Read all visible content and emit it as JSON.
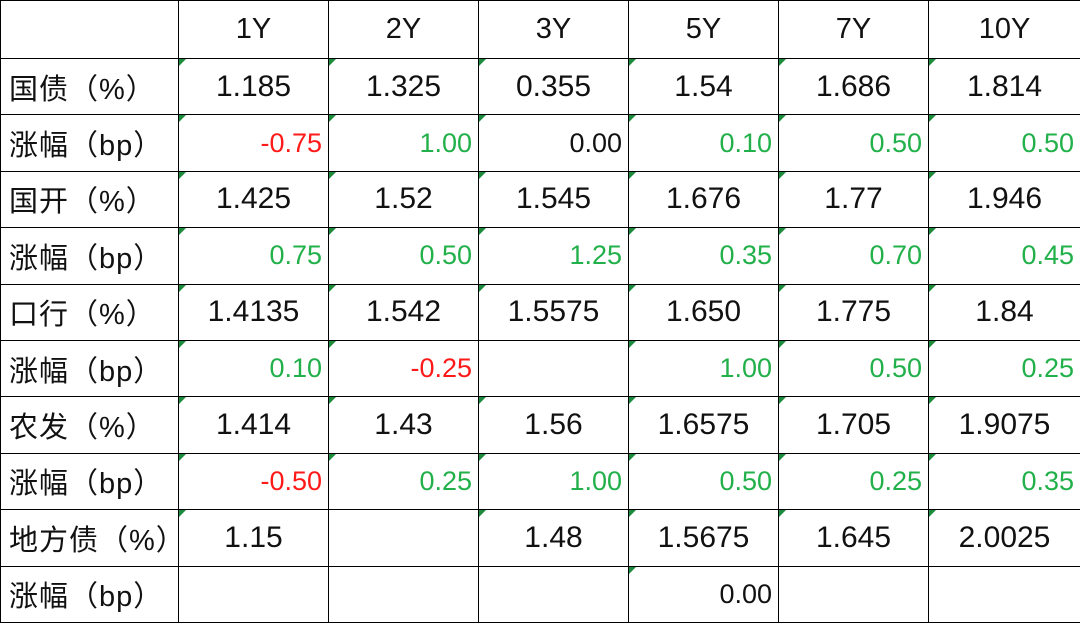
{
  "table": {
    "header": [
      null,
      "1Y",
      "2Y",
      "3Y",
      "5Y",
      "7Y",
      "10Y"
    ],
    "rows": [
      [
        "国债（%）",
        "1.185",
        "1.325",
        "0.355",
        "1.54",
        "1.686",
        "1.814"
      ],
      [
        "涨幅（bp）",
        "-0.75",
        "1.00",
        "0.00",
        "0.10",
        "0.50",
        "0.50"
      ],
      [
        "国开（%）",
        "1.425",
        "1.52",
        "1.545",
        "1.676",
        "1.77",
        "1.946"
      ],
      [
        "涨幅（bp）",
        "0.75",
        "0.50",
        "1.25",
        "0.35",
        "0.70",
        "0.45"
      ],
      [
        "口行（%）",
        "1.4135",
        "1.542",
        "1.5575",
        "1.650",
        "1.775",
        "1.84"
      ],
      [
        "涨幅（bp）",
        "0.10",
        "-0.25",
        null,
        "1.00",
        "0.50",
        "0.25"
      ],
      [
        "农发（%）",
        "1.414",
        "1.43",
        "1.56",
        "1.6575",
        "1.705",
        "1.9075"
      ],
      [
        "涨幅（bp）",
        "-0.50",
        "0.25",
        "1.00",
        "0.50",
        "0.25",
        "0.35"
      ],
      [
        "地方债（%）",
        "1.15",
        null,
        "1.48",
        "1.5675",
        "1.645",
        "2.0025"
      ],
      [
        "涨幅（bp）",
        null,
        null,
        null,
        "0.00",
        null,
        null
      ]
    ]
  }
}
